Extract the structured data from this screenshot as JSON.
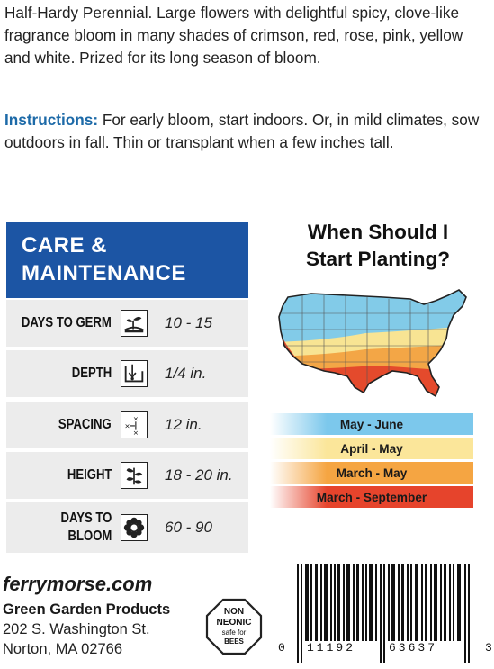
{
  "description": "Half-Hardy Perennial. Large flowers with delightful spicy, clove-like fragrance bloom in many shades of crimson, red, rose, pink, yellow and white. Prized for its long season of bloom.",
  "instructions": {
    "label": "Instructions:",
    "text": " For early bloom, start indoors. Or, in mild climates, sow outdoors in fall. Thin or transplant when a few inches tall."
  },
  "care": {
    "title_line1": "CARE &",
    "title_line2": "MAINTENANCE",
    "rows": [
      {
        "label": "DAYS TO GERM",
        "icon": "seedling-icon",
        "value": "10 - 15"
      },
      {
        "label": "DEPTH",
        "icon": "depth-icon",
        "value": "1/4 in."
      },
      {
        "label": "SPACING",
        "icon": "spacing-icon",
        "value": "12 in."
      },
      {
        "label": "HEIGHT",
        "icon": "plant-height-icon",
        "value": "18 - 20 in."
      },
      {
        "label_line1": "DAYS TO",
        "label_line2": "BLOOM",
        "icon": "flower-icon",
        "value": "60 - 90"
      }
    ]
  },
  "planting": {
    "title_line1": "When Should I",
    "title_line2": "Start Planting?",
    "zones": [
      {
        "label": "May - June",
        "color": "#7cc8ec"
      },
      {
        "label": "April - May",
        "color": "#fbe69a"
      },
      {
        "label": "March - May",
        "color": "#f5a542"
      },
      {
        "label": "March - September",
        "color": "#e6442c"
      }
    ]
  },
  "footer": {
    "website": "ferrymorse.com",
    "company": "Green Garden Products",
    "address_line1": "202 S. Washington St.",
    "address_line2": "Norton, MA 02766"
  },
  "badge": {
    "line1": "NON",
    "line2": "NEONIC",
    "line3": "safe for",
    "line4": "BEES"
  },
  "barcode": {
    "left_digit": "0",
    "group1": "11192",
    "group2": "63637",
    "right_digit": "3"
  }
}
